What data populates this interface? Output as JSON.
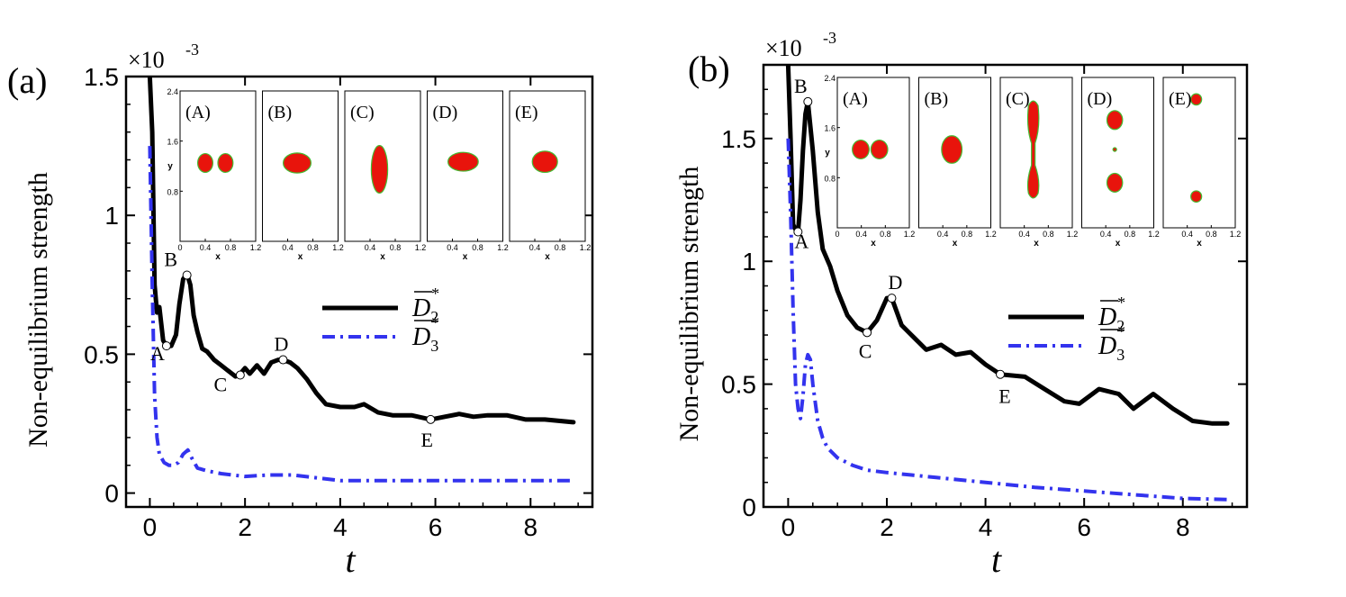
{
  "chart_data": [
    {
      "type": "line",
      "panel_label": "(a)",
      "exponent_label": "×10",
      "exponent_power": "-3",
      "xlabel": "t",
      "ylabel": "Non-equilibrium strength",
      "xlim": [
        -0.5,
        9.3
      ],
      "ylim": [
        -0.05,
        1.5
      ],
      "xticks": [
        0,
        2,
        4,
        6,
        8
      ],
      "yticks": [
        0,
        0.5,
        1,
        1.5
      ],
      "xtick_labels": [
        "0",
        "2",
        "4",
        "6",
        "8"
      ],
      "ytick_labels": [
        "0",
        "0.5",
        "1",
        "1.5"
      ],
      "legend": {
        "position": "center-right",
        "labels": [
          "D2",
          "D3"
        ]
      },
      "series": [
        {
          "name": "D2",
          "color": "#000000",
          "style": "solid",
          "x": [
            0.0,
            0.05,
            0.1,
            0.15,
            0.2,
            0.28,
            0.35,
            0.45,
            0.55,
            0.62,
            0.7,
            0.78,
            0.85,
            0.92,
            1.0,
            1.1,
            1.2,
            1.35,
            1.5,
            1.65,
            1.8,
            1.9,
            2.0,
            2.1,
            2.25,
            2.4,
            2.55,
            2.7,
            2.8,
            2.95,
            3.1,
            3.3,
            3.5,
            3.7,
            4.0,
            4.3,
            4.5,
            4.8,
            5.1,
            5.5,
            5.9,
            6.2,
            6.5,
            6.8,
            7.1,
            7.5,
            7.9,
            8.3,
            8.9
          ],
          "y": [
            1.5,
            1.3,
            0.75,
            0.65,
            0.67,
            0.55,
            0.53,
            0.53,
            0.57,
            0.68,
            0.77,
            0.79,
            0.75,
            0.64,
            0.58,
            0.52,
            0.51,
            0.48,
            0.46,
            0.44,
            0.42,
            0.43,
            0.45,
            0.43,
            0.46,
            0.43,
            0.47,
            0.48,
            0.48,
            0.47,
            0.45,
            0.41,
            0.36,
            0.32,
            0.31,
            0.31,
            0.32,
            0.29,
            0.28,
            0.28,
            0.265,
            0.275,
            0.285,
            0.275,
            0.28,
            0.28,
            0.265,
            0.265,
            0.255
          ]
        },
        {
          "name": "D3",
          "color": "#3333ee",
          "style": "dashdot",
          "x": [
            0.0,
            0.05,
            0.1,
            0.15,
            0.2,
            0.3,
            0.4,
            0.5,
            0.6,
            0.7,
            0.8,
            0.9,
            1.0,
            1.2,
            1.5,
            2.0,
            2.5,
            3.0,
            3.5,
            4.0,
            5.0,
            6.0,
            7.0,
            8.0,
            8.9
          ],
          "y": [
            1.25,
            0.75,
            0.35,
            0.2,
            0.14,
            0.11,
            0.1,
            0.1,
            0.11,
            0.14,
            0.155,
            0.12,
            0.09,
            0.08,
            0.07,
            0.06,
            0.065,
            0.065,
            0.055,
            0.045,
            0.045,
            0.045,
            0.045,
            0.045,
            0.045
          ]
        }
      ],
      "points": [
        {
          "label": "A",
          "x": 0.35,
          "y": 0.53
        },
        {
          "label": "B",
          "x": 0.78,
          "y": 0.785
        },
        {
          "label": "C",
          "x": 1.9,
          "y": 0.425
        },
        {
          "label": "D",
          "x": 2.8,
          "y": 0.48
        },
        {
          "label": "E",
          "x": 5.9,
          "y": 0.265
        }
      ],
      "inset_panels": [
        "(A)",
        "(B)",
        "(C)",
        "(D)",
        "(E)"
      ],
      "inset_axes": {
        "xlabel": "x",
        "ylabel": "y",
        "xticks": [
          "0",
          "0.4",
          "0.8",
          "1.2"
        ],
        "yticks": [
          "0.8",
          "1.6",
          "2.4"
        ]
      }
    },
    {
      "type": "line",
      "panel_label": "(b)",
      "exponent_label": "×10",
      "exponent_power": "-3",
      "xlabel": "t",
      "ylabel": "Non-equilibrium strength",
      "xlim": [
        -0.5,
        9.3
      ],
      "ylim": [
        0,
        1.8
      ],
      "xticks": [
        0,
        2,
        4,
        6,
        8
      ],
      "yticks": [
        0,
        0.5,
        1,
        1.5
      ],
      "xtick_labels": [
        "0",
        "2",
        "4",
        "6",
        "8"
      ],
      "ytick_labels": [
        "0",
        "0.5",
        "1",
        "1.5"
      ],
      "legend": {
        "position": "center-right",
        "labels": [
          "D2",
          "D3"
        ]
      },
      "series": [
        {
          "name": "D2",
          "color": "#000000",
          "style": "solid",
          "x": [
            0.0,
            0.05,
            0.1,
            0.15,
            0.2,
            0.25,
            0.3,
            0.35,
            0.4,
            0.5,
            0.6,
            0.7,
            0.85,
            1.0,
            1.2,
            1.4,
            1.6,
            1.8,
            2.0,
            2.1,
            2.3,
            2.5,
            2.8,
            3.1,
            3.4,
            3.7,
            4.0,
            4.3,
            4.8,
            5.2,
            5.6,
            5.9,
            6.3,
            6.7,
            7.0,
            7.4,
            7.8,
            8.2,
            8.6,
            8.9
          ],
          "y": [
            1.8,
            1.5,
            1.15,
            1.13,
            1.12,
            1.25,
            1.45,
            1.6,
            1.65,
            1.45,
            1.2,
            1.05,
            0.98,
            0.88,
            0.78,
            0.73,
            0.71,
            0.76,
            0.85,
            0.85,
            0.74,
            0.7,
            0.64,
            0.66,
            0.62,
            0.63,
            0.58,
            0.54,
            0.53,
            0.48,
            0.43,
            0.42,
            0.48,
            0.46,
            0.4,
            0.46,
            0.4,
            0.35,
            0.34,
            0.34
          ]
        },
        {
          "name": "D3",
          "color": "#3333ee",
          "style": "dashdot",
          "x": [
            0.0,
            0.05,
            0.1,
            0.15,
            0.2,
            0.25,
            0.3,
            0.35,
            0.4,
            0.45,
            0.5,
            0.6,
            0.7,
            0.8,
            1.0,
            1.3,
            1.6,
            2.0,
            2.5,
            3.0,
            4.0,
            5.0,
            6.0,
            7.0,
            8.0,
            8.9
          ],
          "y": [
            1.5,
            1.2,
            0.8,
            0.5,
            0.4,
            0.36,
            0.45,
            0.58,
            0.62,
            0.6,
            0.5,
            0.35,
            0.28,
            0.24,
            0.2,
            0.17,
            0.15,
            0.14,
            0.13,
            0.12,
            0.1,
            0.08,
            0.065,
            0.05,
            0.035,
            0.03
          ]
        }
      ],
      "points": [
        {
          "label": "A",
          "x": 0.2,
          "y": 1.12
        },
        {
          "label": "B",
          "x": 0.4,
          "y": 1.65
        },
        {
          "label": "C",
          "x": 1.6,
          "y": 0.71
        },
        {
          "label": "D",
          "x": 2.1,
          "y": 0.85
        },
        {
          "label": "E",
          "x": 4.3,
          "y": 0.54
        }
      ],
      "inset_panels": [
        "(A)",
        "(B)",
        "(C)",
        "(D)",
        "(E)"
      ],
      "inset_axes": {
        "xlabel": "x",
        "ylabel": "y",
        "xticks": [
          "0",
          "0.4",
          "0.8",
          "1.2"
        ],
        "yticks": [
          "0.8",
          "1.6",
          "2.4"
        ]
      }
    }
  ],
  "colors": {
    "droplet_fill": "#e8140c",
    "droplet_edge": "#44bb33",
    "axis": "#000000"
  }
}
